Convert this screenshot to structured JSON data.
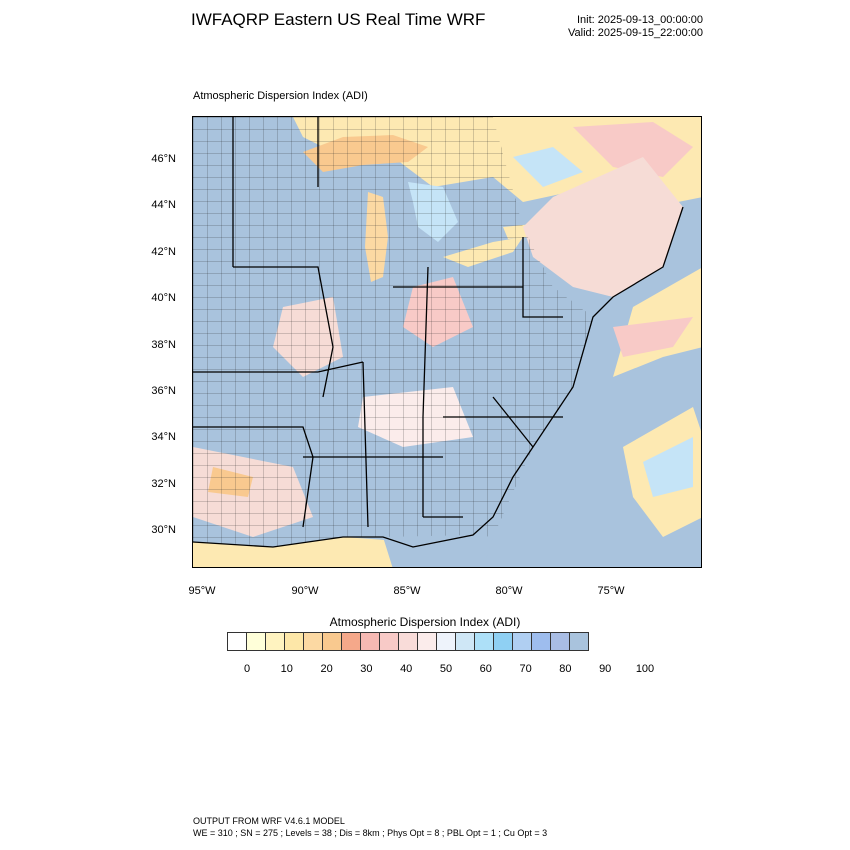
{
  "header": {
    "title": "IWFAQRP Eastern US Real Time WRF",
    "init": "Init: 2025-09-13_00:00:00",
    "valid": "Valid: 2025-09-15_22:00:00"
  },
  "map": {
    "subtitle": "Atmospheric Dispersion Index   (ADI)",
    "lat_labels": [
      "46°N",
      "44°N",
      "42°N",
      "40°N",
      "38°N",
      "36°N",
      "34°N",
      "32°N",
      "30°N"
    ],
    "lon_labels": [
      "95°W",
      "90°W",
      "85°W",
      "80°W",
      "75°W"
    ],
    "colors": {
      "land_high": "#a9c3dd",
      "ocean": "#a9c3dd",
      "water_low": "#fde9b2",
      "low_orange": "#f9c98f",
      "mid_pink": "#f6dcd6",
      "light_blue": "#c5e4f7"
    }
  },
  "colorbar": {
    "title": "Atmospheric Dispersion Index  (ADI)",
    "colors": [
      "#ffffff",
      "#ffffd9",
      "#fff3c0",
      "#fde7a8",
      "#fcd9a3",
      "#f9c98f",
      "#f5a88a",
      "#f6b9b3",
      "#f8cac7",
      "#f9dcd9",
      "#fbeceb",
      "#eef3fb",
      "#cfe7f6",
      "#ade0f8",
      "#8fd0f3",
      "#b0cff2",
      "#9ebdee",
      "#a9bde4",
      "#a9c3dd"
    ],
    "labels": [
      "0",
      "10",
      "20",
      "30",
      "40",
      "50",
      "60",
      "70",
      "80",
      "90",
      "100"
    ]
  },
  "footer": {
    "line1": "OUTPUT FROM WRF V4.6.1 MODEL",
    "line2": "WE = 310 ; SN = 275 ; Levels = 38 ; Dis = 8km ; Phys Opt = 8 ; PBL Opt = 1 ; Cu Opt = 3"
  }
}
